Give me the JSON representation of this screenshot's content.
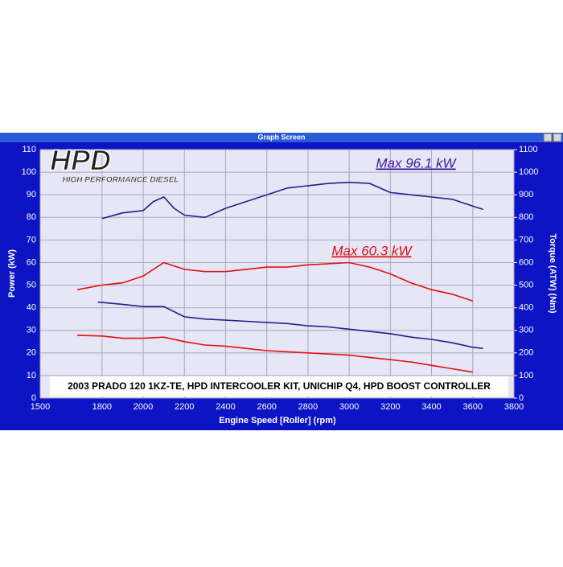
{
  "chart_data": {
    "type": "line",
    "window_title": "Graph Screen",
    "logo": "HPD",
    "logo_subtitle": "HIGH PERFORMANCE DIESEL",
    "x_label": "Engine Speed [Roller] (rpm)",
    "y_label": "Power (kW)",
    "y2_label": "Torque (ATW) (Nm)",
    "annotations": [
      {
        "text": "Max 96.1 kW",
        "color": "#3a1aa0"
      },
      {
        "text": "Max 60.3 kW",
        "color": "#e01010"
      },
      {
        "text": "2003 PRADO 120 1KZ-TE, HPD INTERCOOLER KIT, UNICHIP Q4, HPD BOOST CONTROLLER",
        "color": "#000000"
      }
    ],
    "xlim": [
      1500,
      3800
    ],
    "xticks": [
      1500,
      1800,
      2000,
      2200,
      2400,
      2600,
      2800,
      3000,
      3200,
      3400,
      3600,
      3800
    ],
    "ylim": [
      0,
      110
    ],
    "yticks": [
      0,
      10,
      20,
      30,
      40,
      50,
      60,
      70,
      80,
      90,
      100,
      110
    ],
    "y2lim": [
      0,
      1100
    ],
    "y2ticks": [
      0,
      100,
      200,
      300,
      400,
      500,
      600,
      700,
      800,
      900,
      1000,
      1100
    ],
    "grid": true,
    "series": [
      {
        "color": "#2a1a8c",
        "x": [
          1800,
          1900,
          2000,
          2050,
          2100,
          2150,
          2200,
          2300,
          2400,
          2500,
          2600,
          2700,
          2800,
          2900,
          3000,
          3100,
          3200,
          3300,
          3400,
          3500,
          3600,
          3650
        ],
        "values": [
          79.5,
          82,
          83,
          87,
          89,
          84,
          81,
          80,
          84,
          87,
          90,
          93,
          94,
          95,
          95.5,
          95,
          91,
          90,
          89,
          88,
          85,
          83.5
        ]
      },
      {
        "color": "#e01010",
        "x": [
          1680,
          1800,
          1900,
          2000,
          2100,
          2200,
          2300,
          2400,
          2500,
          2600,
          2700,
          2800,
          2900,
          3000,
          3100,
          3200,
          3300,
          3400,
          3500,
          3600
        ],
        "values": [
          48,
          50,
          51,
          54,
          60,
          57,
          56,
          56,
          57,
          58,
          58,
          59,
          59.5,
          60,
          58,
          55,
          51,
          48,
          46,
          43
        ]
      },
      {
        "color": "#2a1a8c",
        "axis": "y2",
        "x": [
          1780,
          1900,
          2000,
          2100,
          2200,
          2300,
          2400,
          2500,
          2600,
          2700,
          2800,
          2900,
          3000,
          3100,
          3200,
          3300,
          3400,
          3500,
          3600,
          3650
        ],
        "values": [
          425,
          415,
          405,
          405,
          360,
          350,
          345,
          340,
          335,
          330,
          320,
          315,
          305,
          295,
          285,
          270,
          260,
          245,
          225,
          220
        ]
      },
      {
        "color": "#e01010",
        "axis": "y2",
        "x": [
          1680,
          1800,
          1900,
          2000,
          2100,
          2200,
          2300,
          2400,
          2500,
          2600,
          2700,
          2800,
          2900,
          3000,
          3100,
          3200,
          3300,
          3400,
          3500,
          3600
        ],
        "values": [
          278,
          275,
          265,
          265,
          270,
          250,
          235,
          230,
          220,
          210,
          205,
          200,
          195,
          190,
          180,
          170,
          160,
          145,
          130,
          115
        ]
      }
    ]
  }
}
